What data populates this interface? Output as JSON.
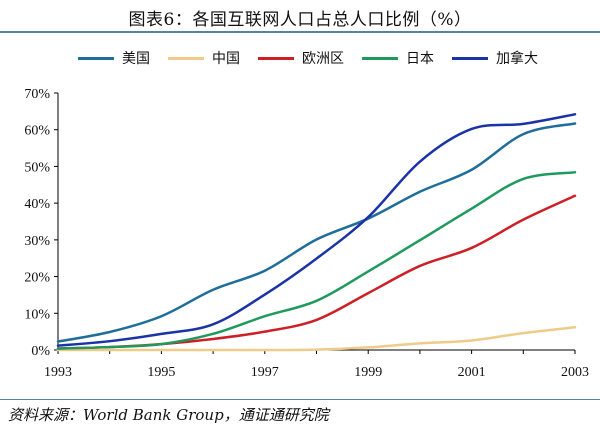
{
  "title": "图表6：各国互联网人口占总人口比例（%）",
  "source": "资料来源：World Bank Group，通证通研究院",
  "chart_data": {
    "type": "line",
    "xlim": [
      1993,
      2003
    ],
    "ylim": [
      0,
      70
    ],
    "y_ticks": [
      "0%",
      "10%",
      "20%",
      "30%",
      "40%",
      "50%",
      "60%",
      "70%"
    ],
    "x_ticks": [
      "1993",
      "1995",
      "1997",
      "1999",
      "2001",
      "2003"
    ],
    "grid": false,
    "legend_position": "top",
    "x": [
      1993,
      1994,
      1995,
      1996,
      1997,
      1998,
      1999,
      2000,
      2001,
      2002,
      2003
    ],
    "series": [
      {
        "name": "美国",
        "color": "#1f6e99",
        "values": [
          2.3,
          4.9,
          9.2,
          16.4,
          21.6,
          30.1,
          35.8,
          43.1,
          49.1,
          58.8,
          61.7
        ]
      },
      {
        "name": "中国",
        "color": "#efcb8a",
        "values": [
          0.0,
          0.0,
          0.0,
          0.0,
          0.0,
          0.1,
          0.7,
          1.8,
          2.6,
          4.6,
          6.2
        ]
      },
      {
        "name": "欧洲区",
        "color": "#cc2026",
        "values": [
          0.4,
          0.8,
          1.6,
          3.0,
          5.0,
          8.2,
          15.5,
          22.9,
          27.8,
          35.5,
          42.0
        ]
      },
      {
        "name": "日本",
        "color": "#1f9a5c",
        "values": [
          0.4,
          0.8,
          1.6,
          4.4,
          9.2,
          13.4,
          21.4,
          29.9,
          38.5,
          46.6,
          48.4
        ]
      },
      {
        "name": "加拿大",
        "color": "#1b33a6",
        "values": [
          1.2,
          2.4,
          4.4,
          7.0,
          15.1,
          24.9,
          36.2,
          51.3,
          60.2,
          61.6,
          64.2
        ]
      }
    ]
  }
}
